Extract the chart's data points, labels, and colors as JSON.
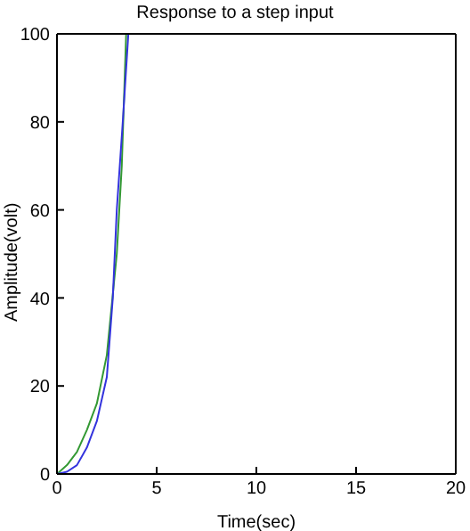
{
  "chart_data": {
    "type": "line",
    "title": "Response to a step input",
    "xlabel": "Time(sec)",
    "ylabel": "Amplitude(volt)",
    "xlim": [
      0,
      20
    ],
    "xticks": [
      0,
      5,
      10,
      15,
      20
    ],
    "ylim": [
      0,
      100
    ],
    "yticks": [
      0,
      20,
      40,
      60,
      80,
      100
    ],
    "grid": false,
    "legend": false,
    "marker": "none",
    "line_style": "solid",
    "series": [
      {
        "color": "#339933",
        "x": [
          0,
          0.5,
          1,
          1.5,
          2,
          2.5,
          3,
          3.25,
          3.47
        ],
        "values": [
          0,
          2,
          5,
          10,
          16,
          27,
          50,
          70,
          100
        ]
      },
      {
        "color": "#3333dd",
        "x": [
          0,
          0.5,
          1,
          1.5,
          2,
          2.5,
          2.8,
          3,
          3.3,
          3.58
        ],
        "values": [
          0,
          0.5,
          2,
          6,
          12,
          22,
          40,
          60,
          80,
          100
        ]
      }
    ]
  }
}
